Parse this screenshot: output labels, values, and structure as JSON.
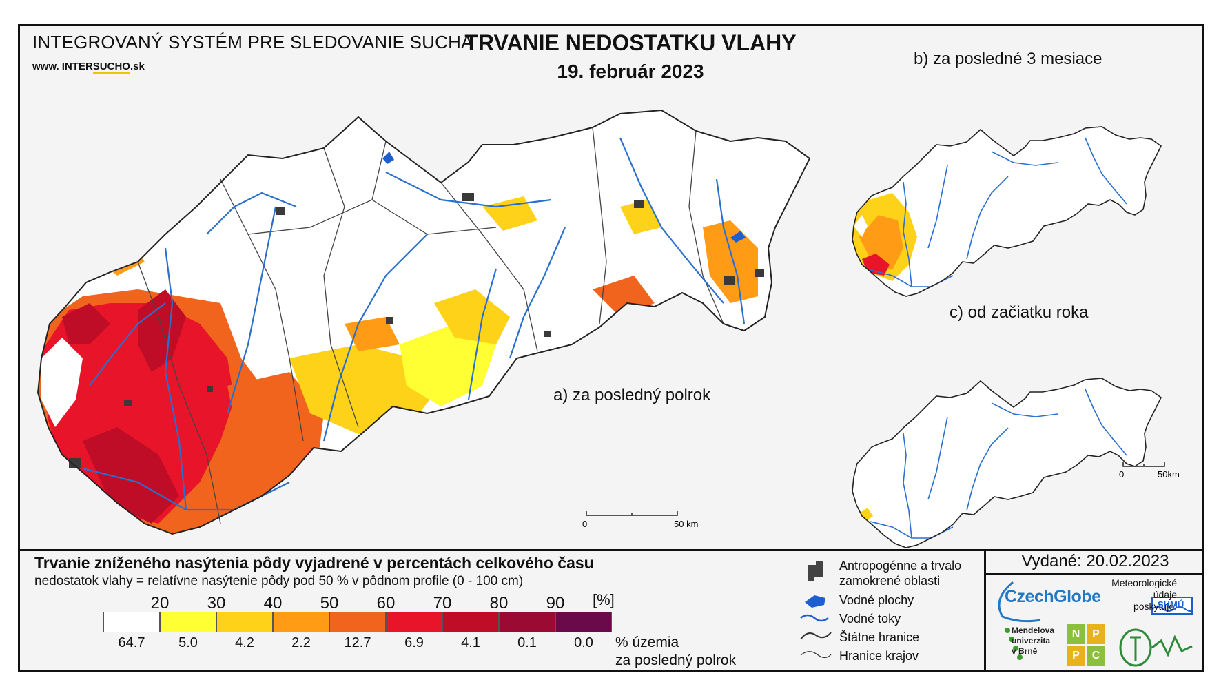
{
  "header": {
    "system_name": "INTEGROVANÝ SYSTÉM PRE SLEDOVANIE SUCHA",
    "url_prefix": "www. INTER",
    "url_underlined": "SUCHO",
    "url_suffix": ".sk",
    "title": "TRVANIE NEDOSTATKU VLAHY",
    "date": "19. február 2023"
  },
  "maps": {
    "main_label": "a) za posledný polrok",
    "three_months_label": "b) za posledné 3 mesiace",
    "year_start_label": "c) od začiatku roka",
    "main_scale": {
      "start": "0",
      "end": "50 km"
    },
    "small_scale": {
      "start": "0",
      "end": "50km"
    }
  },
  "legend": {
    "title": "Trvanie zníženého nasýtenia pôdy vyjadrené v percentách celkového času",
    "subtitle": "nedostatok vlahy = relatívne nasýtenie pôdy pod 50 % v pôdnom profile (0 - 100 cm)",
    "unit": "[%]",
    "ticks": [
      "20",
      "30",
      "40",
      "50",
      "60",
      "70",
      "80",
      "90"
    ],
    "classes": [
      {
        "color": "#ffffff",
        "share": "64.7"
      },
      {
        "color": "#ffff33",
        "share": "5.0"
      },
      {
        "color": "#ffd21a",
        "share": "4.2"
      },
      {
        "color": "#ff9b14",
        "share": "2.2"
      },
      {
        "color": "#f0641e",
        "share": "12.7"
      },
      {
        "color": "#e8142a",
        "share": "6.9"
      },
      {
        "color": "#c00d27",
        "share": "4.1"
      },
      {
        "color": "#9a0a32",
        "share": "0.1"
      },
      {
        "color": "#6a0a4a",
        "share": "0.0"
      }
    ],
    "area_label_line1": "% územia",
    "area_label_line2": "za posledný polrok"
  },
  "map_legend": {
    "urban": "Antropogénne a trvalo zamokrené oblasti",
    "urban_line1": "Antropogénne a trvalo",
    "urban_line2": "zamokrené oblasti",
    "water_bodies": "Vodné plochy",
    "rivers": "Vodné toky",
    "state_border": "Štátne hranice",
    "region_border": "Hranice krajov"
  },
  "issued": "Vydané: 20.02.2023",
  "logos": {
    "czechglobe": "CzechGlobe",
    "meteo_line1": "Meteorologické",
    "meteo_line2": "údaje",
    "meteo_line3": "poskytuje:",
    "shmu": "SHMÚ",
    "mendel_line1": "Mendelova",
    "mendel_line2": "univerzita",
    "mendel_line3": "v Brně",
    "nppc": [
      "N",
      "P",
      "P",
      "C"
    ]
  },
  "colors": {
    "river": "#2a6fcf",
    "urban": "#3a3a3a",
    "border": "#333333"
  }
}
